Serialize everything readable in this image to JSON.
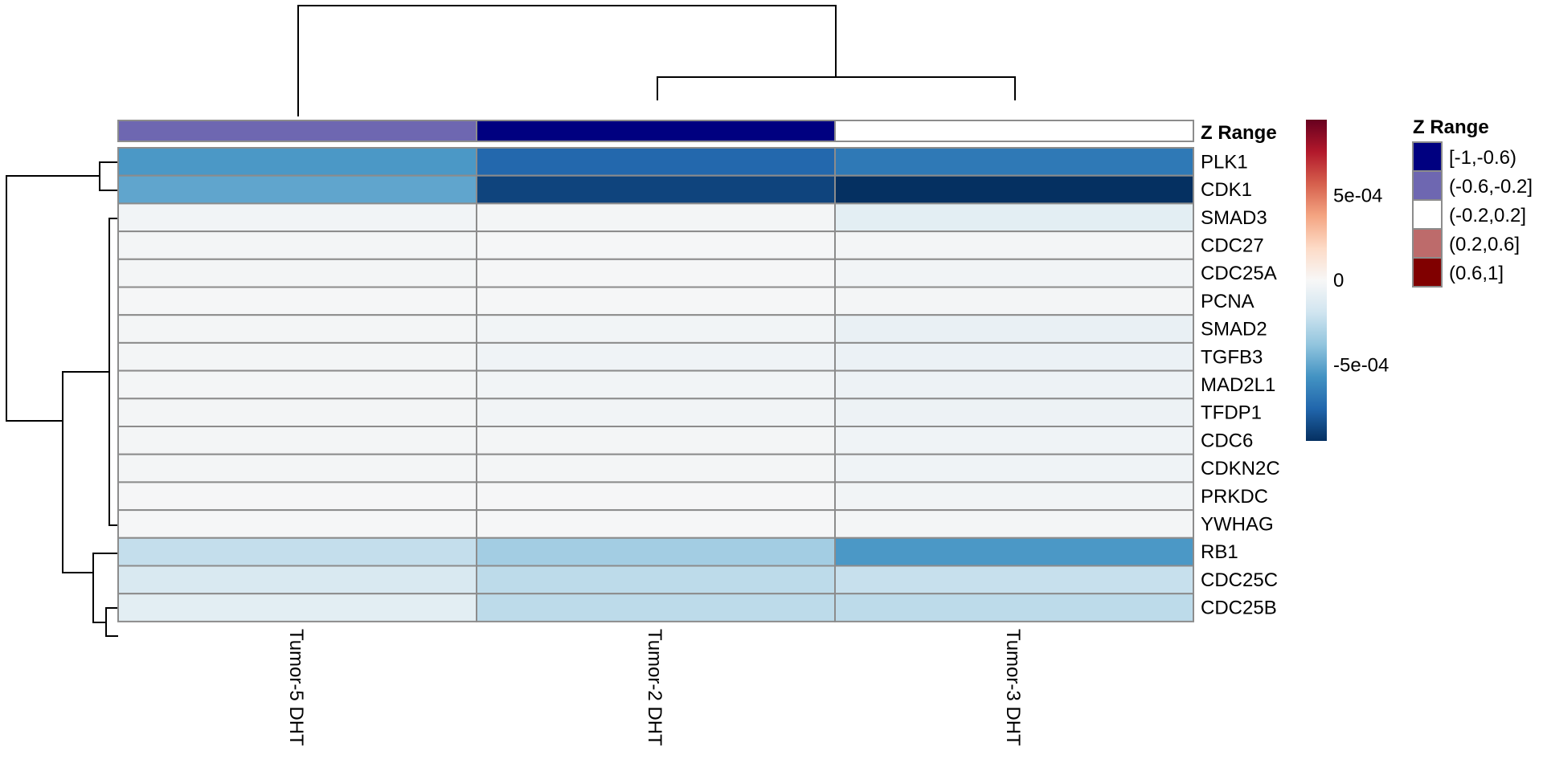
{
  "chart_data": {
    "type": "heatmap",
    "columns": [
      "Tumor-5 DHT",
      "Tumor-2 DHT",
      "Tumor-3 DHT"
    ],
    "rows": [
      "PLK1",
      "CDK1",
      "SMAD3",
      "CDC27",
      "CDC25A",
      "PCNA",
      "SMAD2",
      "TGFB3",
      "MAD2L1",
      "TFDP1",
      "CDC6",
      "CDKN2C",
      "PRKDC",
      "YWHAG",
      "RB1",
      "CDC25C",
      "CDC25B"
    ],
    "values": [
      [
        -0.00055,
        -0.00075,
        -0.00068
      ],
      [
        -0.0005,
        -0.00088,
        -0.00095
      ],
      [
        -3e-05,
        -2e-05,
        -0.0001
      ],
      [
        -2e-05,
        -1e-05,
        -2e-05
      ],
      [
        -2e-05,
        -1e-05,
        -3e-05
      ],
      [
        -1e-05,
        -1e-05,
        -2e-05
      ],
      [
        -2e-05,
        -3e-05,
        -7e-05
      ],
      [
        -2e-05,
        -4e-05,
        -6e-05
      ],
      [
        -2e-05,
        -3e-05,
        -5e-05
      ],
      [
        -2e-05,
        -3e-05,
        -5e-05
      ],
      [
        -2e-05,
        -2e-05,
        -4e-05
      ],
      [
        -2e-05,
        -2e-05,
        -4e-05
      ],
      [
        -1e-05,
        -1e-05,
        -3e-05
      ],
      [
        -1e-05,
        -1e-05,
        -2e-05
      ],
      [
        -0.00023,
        -0.00033,
        -0.00055
      ],
      [
        -0.00015,
        -0.00025,
        -0.00022
      ],
      [
        -0.0001,
        -0.00025,
        -0.00025
      ]
    ],
    "annotation": {
      "title": "Z Range",
      "column_categories": [
        "(-0.6,-0.2]",
        "[-1,-0.6)",
        "(-0.2,0.2]"
      ],
      "legend_title": "Z Range",
      "legend": [
        {
          "label": "[-1,-0.6)",
          "color": "#000080"
        },
        {
          "label": "(-0.6,-0.2]",
          "color": "#6e67b1"
        },
        {
          "label": "(-0.2,0.2]",
          "color": "#ffffff"
        },
        {
          "label": "(0.2,0.6]",
          "color": "#bd6b6b"
        },
        {
          "label": "(0.6,1]",
          "color": "#800000"
        }
      ]
    },
    "colorbar": {
      "range": [
        -0.00095,
        0.00095
      ],
      "ticks": [
        {
          "value": 0.0005,
          "label": "5e-04"
        },
        {
          "value": 0,
          "label": "0"
        },
        {
          "value": -0.0005,
          "label": "-5e-04"
        }
      ],
      "colors": [
        "#053061",
        "#2166ac",
        "#4393c3",
        "#92c5de",
        "#d1e5f0",
        "#f7f7f7",
        "#fddbc7",
        "#f4a582",
        "#d6604d",
        "#b2182b",
        "#67001f"
      ]
    },
    "dendrogram": {
      "columns": "Tumor-5 DHT | (Tumor-2 DHT, Tumor-3 DHT)",
      "rows": "((PLK1, CDK1), (SMAD3 … YWHAG), (RB1, (CDC25C, CDC25B)))"
    }
  }
}
